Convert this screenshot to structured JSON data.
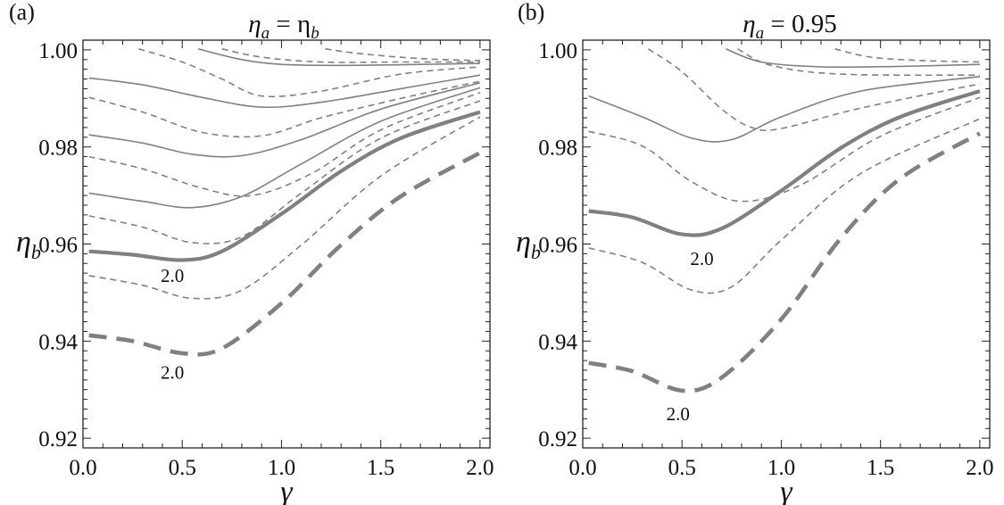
{
  "chart_data": [
    {
      "type": "line",
      "panel_label": "(a)",
      "title": "ηa = ηb",
      "title_main": "η",
      "title_main_sub": "a",
      "title_rest": " = η",
      "title_rest_sub": "b",
      "xlabel": "γ",
      "ylabel": "η",
      "ylabel_sub": "b",
      "xlim": [
        0,
        2.05
      ],
      "ylim": [
        0.918,
        1.002
      ],
      "xticks": [
        "0.0",
        "0.5",
        "1.0",
        "1.5",
        "2.0"
      ],
      "yticks": [
        "0.92",
        "0.94",
        "0.96",
        "0.98",
        "1.00"
      ],
      "grid": false,
      "annotations": [
        {
          "text": "2.0",
          "x": 0.45,
          "y": 0.9535
        },
        {
          "text": "2.0",
          "x": 0.45,
          "y": 0.9335
        }
      ],
      "series": [
        {
          "style": "thin-solid",
          "points": [
            [
              0.58,
              1.0002
            ],
            [
              0.8,
              0.998
            ],
            [
              1.0,
              0.997
            ],
            [
              1.3,
              0.9968
            ],
            [
              1.7,
              0.997
            ],
            [
              2.0,
              0.9972
            ]
          ]
        },
        {
          "style": "thin-solid",
          "points": [
            [
              0.03,
              0.9942
            ],
            [
              0.3,
              0.9928
            ],
            [
              0.6,
              0.9902
            ],
            [
              0.9,
              0.9882
            ],
            [
              1.2,
              0.9892
            ],
            [
              1.6,
              0.992
            ],
            [
              2.0,
              0.9948
            ]
          ]
        },
        {
          "style": "thin-solid",
          "points": [
            [
              0.03,
              0.9825
            ],
            [
              0.3,
              0.9808
            ],
            [
              0.55,
              0.9785
            ],
            [
              0.8,
              0.9782
            ],
            [
              1.1,
              0.9815
            ],
            [
              1.5,
              0.9878
            ],
            [
              2.0,
              0.9932
            ]
          ]
        },
        {
          "style": "thin-solid",
          "points": [
            [
              0.03,
              0.9705
            ],
            [
              0.3,
              0.9688
            ],
            [
              0.55,
              0.9675
            ],
            [
              0.8,
              0.9698
            ],
            [
              1.1,
              0.9765
            ],
            [
              1.5,
              0.9853
            ],
            [
              2.0,
              0.9922
            ]
          ]
        },
        {
          "style": "thick-solid",
          "points": [
            [
              0.03,
              0.9585
            ],
            [
              0.25,
              0.9578
            ],
            [
              0.5,
              0.9567
            ],
            [
              0.7,
              0.9585
            ],
            [
              1.0,
              0.9662
            ],
            [
              1.3,
              0.975
            ],
            [
              1.6,
              0.9818
            ],
            [
              2.0,
              0.9872
            ]
          ]
        },
        {
          "style": "thin-dashed",
          "points": [
            [
              0.28,
              1.0002
            ],
            [
              0.5,
              0.9975
            ],
            [
              0.7,
              0.994
            ],
            [
              0.9,
              0.9905
            ],
            [
              1.2,
              0.9915
            ],
            [
              1.6,
              0.995
            ],
            [
              2.0,
              0.9965
            ]
          ]
        },
        {
          "style": "thin-dashed",
          "points": [
            [
              0.03,
              0.9902
            ],
            [
              0.3,
              0.9872
            ],
            [
              0.6,
              0.983
            ],
            [
              0.9,
              0.9823
            ],
            [
              1.2,
              0.986
            ],
            [
              1.6,
              0.99
            ],
            [
              2.0,
              0.9935
            ]
          ]
        },
        {
          "style": "thin-dashed",
          "points": [
            [
              0.03,
              0.978
            ],
            [
              0.3,
              0.9755
            ],
            [
              0.6,
              0.9715
            ],
            [
              0.85,
              0.97
            ],
            [
              1.15,
              0.9745
            ],
            [
              1.5,
              0.9835
            ],
            [
              2.0,
              0.9912
            ]
          ]
        },
        {
          "style": "thin-dashed",
          "points": [
            [
              0.03,
              0.9658
            ],
            [
              0.3,
              0.9635
            ],
            [
              0.55,
              0.9603
            ],
            [
              0.8,
              0.9615
            ],
            [
              1.1,
              0.9705
            ],
            [
              1.5,
              0.9818
            ],
            [
              2.0,
              0.9895
            ]
          ]
        },
        {
          "style": "thin-dashed",
          "points": [
            [
              0.03,
              0.9535
            ],
            [
              0.3,
              0.9515
            ],
            [
              0.55,
              0.9488
            ],
            [
              0.8,
              0.9505
            ],
            [
              1.1,
              0.9598
            ],
            [
              1.5,
              0.974
            ],
            [
              2.0,
              0.9862
            ]
          ]
        },
        {
          "style": "thin-dashed",
          "points": [
            [
              0.7,
              1.0002
            ],
            [
              0.9,
              0.9985
            ],
            [
              1.2,
              0.9975
            ],
            [
              1.6,
              0.9975
            ],
            [
              2.0,
              0.9975
            ]
          ]
        },
        {
          "style": "thin-dashed",
          "points": [
            [
              1.22,
              1.0002
            ],
            [
              1.4,
              0.9992
            ],
            [
              1.7,
              0.9982
            ],
            [
              2.0,
              0.9978
            ]
          ]
        },
        {
          "style": "thick-dashed",
          "points": [
            [
              0.03,
              0.9412
            ],
            [
              0.25,
              0.94
            ],
            [
              0.5,
              0.9375
            ],
            [
              0.7,
              0.9385
            ],
            [
              1.0,
              0.9478
            ],
            [
              1.3,
              0.9598
            ],
            [
              1.6,
              0.9698
            ],
            [
              2.0,
              0.9788
            ]
          ]
        }
      ]
    },
    {
      "type": "line",
      "panel_label": "(b)",
      "title": "ηa = 0.95",
      "title_main": "η",
      "title_main_sub": "a",
      "title_rest": " = 0.95",
      "title_rest_sub": "",
      "xlabel": "γ",
      "ylabel": "η",
      "ylabel_sub": "b",
      "xlim": [
        0,
        2.05
      ],
      "ylim": [
        0.918,
        1.002
      ],
      "xticks": [
        "0.0",
        "0.5",
        "1.0",
        "1.5",
        "2.0"
      ],
      "yticks": [
        "0.92",
        "0.94",
        "0.96",
        "0.98",
        "1.00"
      ],
      "grid": false,
      "annotations": [
        {
          "text": "2.0",
          "x": 0.6,
          "y": 0.957
        },
        {
          "text": "2.0",
          "x": 0.48,
          "y": 0.925
        }
      ],
      "series": [
        {
          "style": "thin-solid",
          "points": [
            [
              0.72,
              1.0002
            ],
            [
              0.9,
              0.9975
            ],
            [
              1.2,
              0.9965
            ],
            [
              1.6,
              0.9966
            ],
            [
              2.0,
              0.997
            ]
          ]
        },
        {
          "style": "thin-solid",
          "points": [
            [
              0.03,
              0.9905
            ],
            [
              0.3,
              0.9862
            ],
            [
              0.55,
              0.9818
            ],
            [
              0.75,
              0.9815
            ],
            [
              1.0,
              0.9862
            ],
            [
              1.4,
              0.9915
            ],
            [
              2.0,
              0.9945
            ]
          ]
        },
        {
          "style": "thick-solid",
          "points": [
            [
              0.03,
              0.9668
            ],
            [
              0.25,
              0.9655
            ],
            [
              0.5,
              0.962
            ],
            [
              0.7,
              0.9632
            ],
            [
              1.0,
              0.971
            ],
            [
              1.3,
              0.9798
            ],
            [
              1.6,
              0.9862
            ],
            [
              2.0,
              0.9915
            ]
          ]
        },
        {
          "style": "thin-dashed",
          "points": [
            [
              0.33,
              1.0002
            ],
            [
              0.5,
              0.9955
            ],
            [
              0.7,
              0.9878
            ],
            [
              0.85,
              0.984
            ],
            [
              1.0,
              0.9838
            ],
            [
              1.4,
              0.988
            ],
            [
              2.0,
              0.993
            ]
          ]
        },
        {
          "style": "thin-dashed",
          "points": [
            [
              0.03,
              0.9832
            ],
            [
              0.3,
              0.9802
            ],
            [
              0.55,
              0.9728
            ],
            [
              0.8,
              0.9688
            ],
            [
              1.1,
              0.9722
            ],
            [
              1.5,
              0.9822
            ],
            [
              2.0,
              0.9902
            ]
          ]
        },
        {
          "style": "thin-dashed",
          "points": [
            [
              0.03,
              0.9592
            ],
            [
              0.3,
              0.9562
            ],
            [
              0.55,
              0.9505
            ],
            [
              0.75,
              0.9512
            ],
            [
              1.0,
              0.9608
            ],
            [
              1.4,
              0.9745
            ],
            [
              2.0,
              0.9858
            ]
          ]
        },
        {
          "style": "thin-dashed",
          "points": [
            [
              0.78,
              1.0002
            ],
            [
              0.95,
              0.9968
            ],
            [
              1.3,
              0.995
            ],
            [
              2.0,
              0.9948
            ]
          ]
        },
        {
          "style": "thin-dashed",
          "points": [
            [
              1.27,
              1.0002
            ],
            [
              1.45,
              0.9985
            ],
            [
              1.7,
              0.9978
            ],
            [
              2.0,
              0.9975
            ]
          ]
        },
        {
          "style": "thick-dashed",
          "points": [
            [
              0.03,
              0.9355
            ],
            [
              0.25,
              0.9338
            ],
            [
              0.5,
              0.9298
            ],
            [
              0.7,
              0.9325
            ],
            [
              1.0,
              0.9445
            ],
            [
              1.3,
              0.9612
            ],
            [
              1.6,
              0.9735
            ],
            [
              2.0,
              0.9828
            ]
          ]
        }
      ]
    }
  ]
}
